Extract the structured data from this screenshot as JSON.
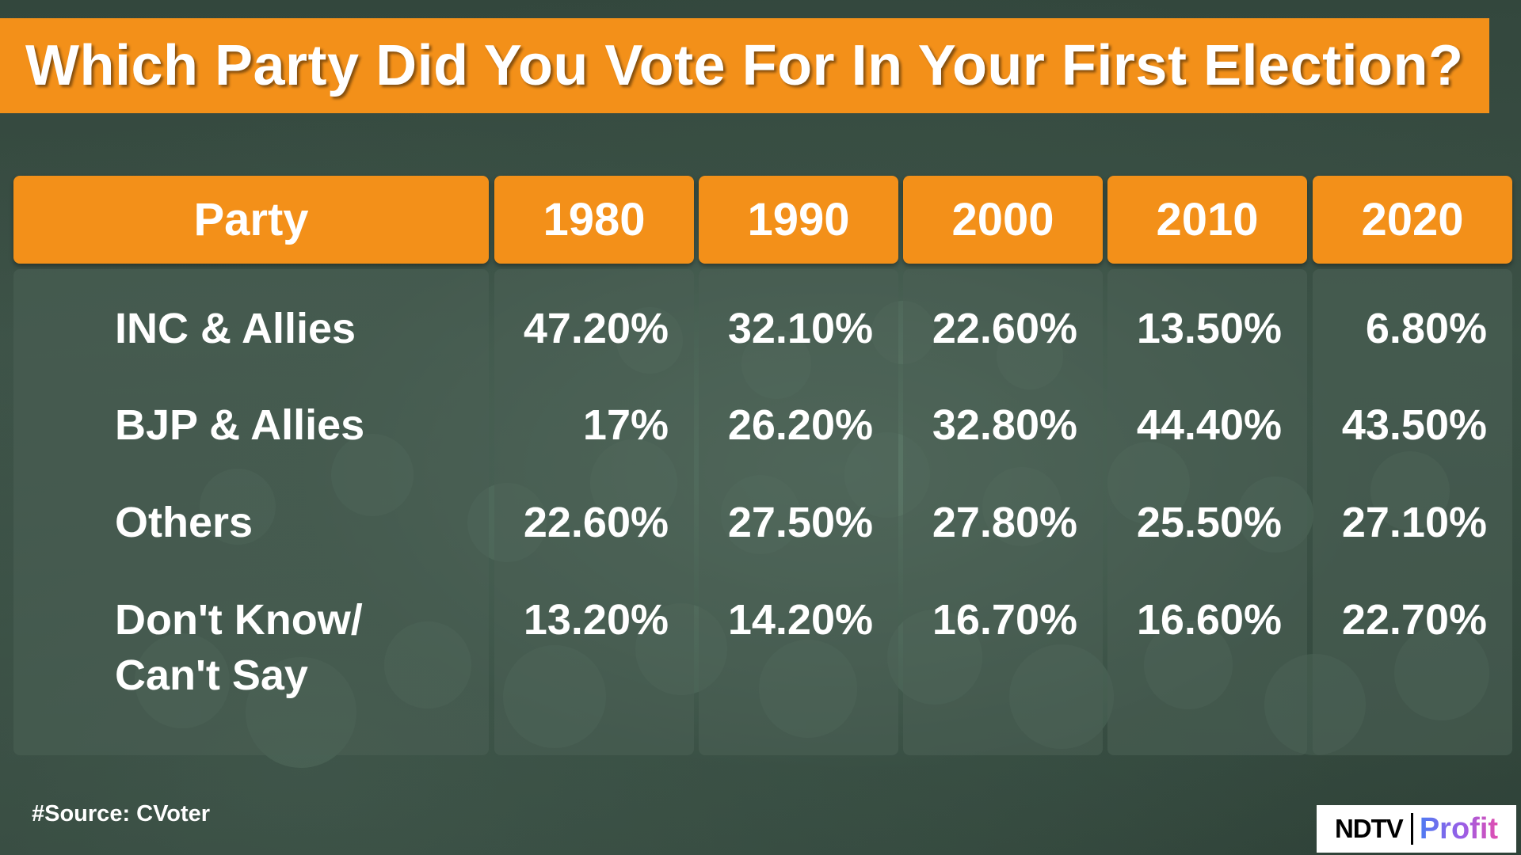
{
  "title": "Which Party Did You Vote For In Your First Election?",
  "source": "#Source: CVoter",
  "logo": {
    "primary": "NDTV",
    "secondary": "Profit"
  },
  "colors": {
    "accent": "#f39019",
    "background": "#3b5045",
    "text": "#ffffff"
  },
  "chart_data": {
    "type": "table",
    "title": "Which Party Did You Vote For In Your First Election?",
    "columns": [
      "Party",
      "1980",
      "1990",
      "2000",
      "2010",
      "2020"
    ],
    "rows": [
      {
        "party": [
          "INC & Allies"
        ],
        "values": [
          "47.20%",
          "32.10%",
          "22.60%",
          "13.50%",
          "6.80%"
        ]
      },
      {
        "party": [
          "BJP & Allies"
        ],
        "values": [
          "17%",
          "26.20%",
          "32.80%",
          "44.40%",
          "43.50%"
        ]
      },
      {
        "party": [
          "Others"
        ],
        "values": [
          "22.60%",
          "27.50%",
          "27.80%",
          "25.50%",
          "27.10%"
        ]
      },
      {
        "party": [
          "Don't Know/",
          "Can't Say"
        ],
        "values": [
          "13.20%",
          "14.20%",
          "16.70%",
          "16.60%",
          "22.70%"
        ]
      }
    ]
  }
}
